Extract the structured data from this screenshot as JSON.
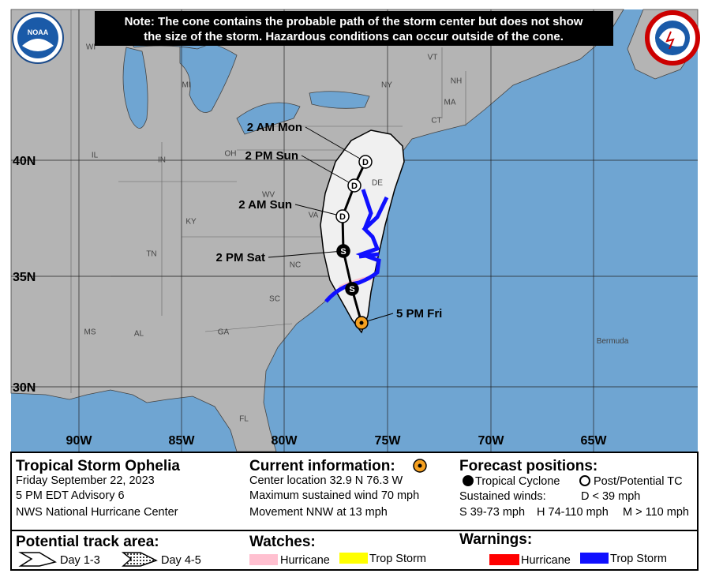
{
  "note": [
    "Note: The cone contains the probable path of the storm center but does not show",
    "the size of the storm. Hazardous conditions can occur outside of the cone."
  ],
  "logos": {
    "noaa": "NOAA"
  },
  "map": {
    "longitude_labels": [
      "90W",
      "85W",
      "80W",
      "75W",
      "70W",
      "65W"
    ],
    "latitude_labels": [
      "40N",
      "35N",
      "30N"
    ],
    "state_labels": [
      "WI",
      "MI",
      "NY",
      "VT",
      "NH",
      "MA",
      "CT",
      "OH",
      "IN",
      "IL",
      "WV",
      "VA",
      "KY",
      "TN",
      "NC",
      "SC",
      "GA",
      "AL",
      "MS",
      "FL",
      "DE"
    ],
    "place_labels": [
      "Bermuda"
    ],
    "forecast_points": [
      {
        "label": "5 PM Fri"
      },
      {
        "symbol": "S"
      },
      {
        "symbol": "S",
        "label": "2 PM Sat"
      },
      {
        "symbol": "D",
        "label": "2 AM Sun"
      },
      {
        "symbol": "D",
        "label": "2 PM Sun"
      },
      {
        "symbol": "D",
        "label": "2 AM Mon"
      }
    ]
  },
  "info": {
    "storm": [
      "Tropical Storm Ophelia",
      "Friday September 22, 2023",
      "5 PM EDT Advisory 6",
      "NWS National Hurricane Center"
    ],
    "current": {
      "title": "Current information:",
      "lines": [
        "Center location 32.9 N 76.3 W",
        "Maximum sustained wind 70 mph",
        "Movement NNW at 13 mph"
      ]
    },
    "forecast": {
      "title": "Forecast positions:",
      "tropical": "Tropical Cyclone",
      "post": "Post/Potential TC",
      "winds": "Sustained winds:",
      "d": "D < 39 mph",
      "s": "S 39-73 mph",
      "h": "H 74-110 mph",
      "m": "M > 110 mph"
    },
    "track": {
      "title": "Potential track area:",
      "day13": "Day 1-3",
      "day45": "Day 4-5"
    },
    "watches": {
      "title": "Watches:",
      "hurricane": "Hurricane",
      "storm": "Trop Storm"
    },
    "warnings": {
      "title": "Warnings:",
      "hurricane": "Hurricane",
      "storm": "Trop Storm"
    }
  }
}
